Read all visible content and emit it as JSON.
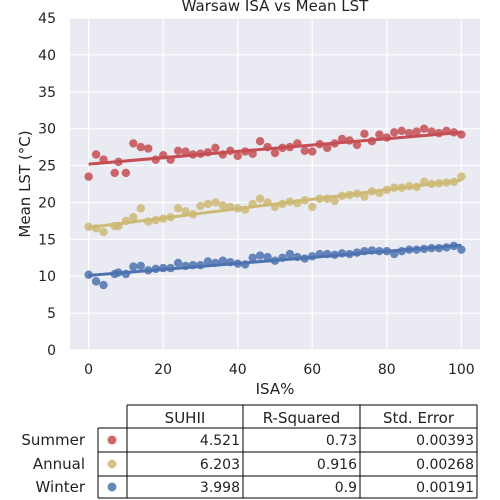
{
  "chart_data": {
    "type": "scatter",
    "title": "Warsaw ISA vs Mean LST",
    "xlabel": "ISA%",
    "ylabel": "Mean LST (°C)",
    "xlim": [
      -5,
      105
    ],
    "ylim": [
      0,
      45
    ],
    "xticks": [
      0,
      20,
      40,
      60,
      80,
      100
    ],
    "yticks": [
      0,
      5,
      10,
      15,
      20,
      25,
      30,
      35,
      40,
      45
    ],
    "grid": true,
    "background": "#eaeaf2",
    "series": [
      {
        "name": "Summer",
        "color": "#c44e52",
        "fit": [
          25.2,
          29.5
        ],
        "x": [
          0,
          2,
          4,
          7,
          8,
          10,
          12,
          14,
          16,
          18,
          20,
          22,
          24,
          26,
          28,
          30,
          32,
          34,
          36,
          38,
          40,
          42,
          44,
          46,
          48,
          50,
          52,
          54,
          56,
          58,
          60,
          62,
          64,
          66,
          68,
          70,
          72,
          74,
          76,
          78,
          80,
          82,
          84,
          86,
          88,
          90,
          92,
          94,
          96,
          98,
          100
        ],
        "y": [
          23.5,
          26.5,
          25.8,
          24.0,
          25.5,
          24.0,
          28.0,
          27.5,
          27.3,
          25.8,
          26.4,
          25.8,
          27.0,
          26.9,
          26.5,
          26.6,
          26.8,
          27.4,
          26.5,
          27.0,
          26.3,
          26.9,
          26.6,
          28.3,
          27.5,
          26.7,
          27.4,
          27.5,
          28.0,
          27.0,
          26.9,
          27.9,
          27.4,
          28.0,
          28.6,
          28.4,
          27.8,
          29.3,
          28.3,
          29.2,
          28.8,
          29.5,
          29.7,
          29.4,
          29.6,
          30.0,
          29.6,
          29.4,
          29.7,
          29.5,
          29.2
        ]
      },
      {
        "name": "Annual",
        "color": "#ccb974",
        "fit": [
          16.6,
          23.0
        ],
        "x": [
          0,
          2,
          4,
          7,
          8,
          10,
          12,
          14,
          16,
          18,
          20,
          22,
          24,
          26,
          28,
          30,
          32,
          34,
          36,
          38,
          40,
          42,
          44,
          46,
          48,
          50,
          52,
          54,
          56,
          58,
          60,
          62,
          64,
          66,
          68,
          70,
          72,
          74,
          76,
          78,
          80,
          82,
          84,
          86,
          88,
          90,
          92,
          94,
          96,
          98,
          100
        ],
        "y": [
          16.7,
          16.5,
          16.0,
          16.8,
          16.8,
          17.5,
          18.0,
          19.2,
          17.4,
          17.6,
          17.8,
          18.0,
          19.2,
          18.8,
          18.4,
          19.5,
          19.8,
          20.0,
          19.6,
          19.4,
          19.2,
          19.0,
          19.8,
          20.5,
          20.0,
          19.4,
          19.8,
          20.1,
          19.9,
          20.3,
          19.4,
          20.5,
          20.5,
          20.2,
          20.9,
          21.0,
          21.2,
          20.8,
          21.5,
          21.3,
          21.7,
          22.0,
          22.0,
          22.2,
          22.1,
          22.8,
          22.5,
          22.6,
          22.7,
          22.8,
          23.5
        ]
      },
      {
        "name": "Winter",
        "color": "#4c72b0",
        "fit": [
          10.1,
          14.2
        ],
        "x": [
          0,
          2,
          4,
          7,
          8,
          10,
          12,
          14,
          16,
          18,
          20,
          22,
          24,
          26,
          28,
          30,
          32,
          34,
          36,
          38,
          40,
          42,
          44,
          46,
          48,
          50,
          52,
          54,
          56,
          58,
          60,
          62,
          64,
          66,
          68,
          70,
          72,
          74,
          76,
          78,
          80,
          82,
          84,
          86,
          88,
          90,
          92,
          94,
          96,
          98,
          100
        ],
        "y": [
          10.2,
          9.3,
          8.8,
          10.3,
          10.5,
          10.3,
          11.3,
          11.4,
          10.8,
          11.0,
          11.1,
          11.1,
          11.8,
          11.4,
          11.5,
          11.5,
          12.0,
          11.8,
          12.1,
          11.9,
          11.7,
          11.6,
          12.5,
          12.8,
          12.6,
          12.1,
          12.5,
          13.0,
          12.6,
          12.4,
          12.7,
          13.0,
          13.0,
          12.9,
          13.1,
          13.0,
          13.2,
          13.4,
          13.5,
          13.4,
          13.4,
          13.0,
          13.4,
          13.6,
          13.6,
          13.7,
          13.8,
          13.8,
          13.9,
          14.1,
          13.6
        ]
      }
    ],
    "table": {
      "columns": [
        "SUHII",
        "R-Squared",
        "Std. Error"
      ],
      "rows": [
        {
          "label": "Summer",
          "color": "#c44e52",
          "values": [
            "4.521",
            "0.73",
            "0.00393"
          ]
        },
        {
          "label": "Annual",
          "color": "#ccb974",
          "values": [
            "6.203",
            "0.916",
            "0.00268"
          ]
        },
        {
          "label": "Winter",
          "color": "#4c72b0",
          "values": [
            "3.998",
            "0.9",
            "0.00191"
          ]
        }
      ]
    }
  }
}
